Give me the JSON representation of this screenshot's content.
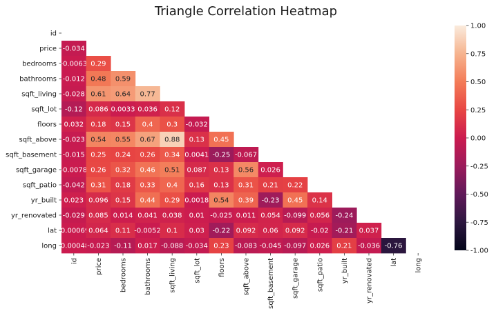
{
  "chart_data": {
    "type": "heatmap",
    "title": "Triangle Correlation Heatmap",
    "xlabel": "",
    "ylabel": "",
    "variables": [
      "id",
      "price",
      "bedrooms",
      "bathrooms",
      "sqft_living",
      "sqft_lot",
      "floors",
      "sqft_above",
      "sqft_basement",
      "sqft_garage",
      "sqft_patio",
      "yr_built",
      "yr_renovated",
      "lat",
      "long"
    ],
    "lower_triangle": [
      [],
      [
        "-0.034"
      ],
      [
        "-0.0063",
        "0.29"
      ],
      [
        "-0.012",
        "0.48",
        "0.59"
      ],
      [
        "-0.028",
        "0.61",
        "0.64",
        "0.77"
      ],
      [
        "-0.12",
        "0.086",
        "0.0033",
        "0.036",
        "0.12"
      ],
      [
        "0.032",
        "0.18",
        "0.15",
        "0.4",
        "0.3",
        "-0.032"
      ],
      [
        "-0.023",
        "0.54",
        "0.55",
        "0.67",
        "0.88",
        "0.13",
        "0.45"
      ],
      [
        "-0.015",
        "0.25",
        "0.24",
        "0.26",
        "0.34",
        "0.0041",
        "-0.25",
        "-0.067"
      ],
      [
        "-0.0078",
        "0.26",
        "0.32",
        "0.46",
        "0.51",
        "0.087",
        "0.13",
        "0.56",
        "0.026"
      ],
      [
        "-0.042",
        "0.31",
        "0.18",
        "0.33",
        "0.4",
        "0.16",
        "0.13",
        "0.31",
        "0.21",
        "0.22"
      ],
      [
        "0.023",
        "0.096",
        "0.15",
        "0.44",
        "0.29",
        "0.0018",
        "0.54",
        "0.39",
        "-0.23",
        "0.45",
        "0.14"
      ],
      [
        "-0.029",
        "0.085",
        "0.014",
        "0.041",
        "0.038",
        "0.01",
        "-0.025",
        "0.011",
        "0.054",
        "-0.099",
        "0.056",
        "-0.24"
      ],
      [
        "-0.00069",
        "0.064",
        "0.11",
        "-0.0052",
        "0.1",
        "0.03",
        "-0.22",
        "0.092",
        "0.06",
        "0.092",
        "-0.02",
        "-0.21",
        "0.037"
      ],
      [
        "-0.00048",
        "-0.023",
        "-0.11",
        "0.017",
        "-0.088",
        "-0.034",
        "0.23",
        "-0.083",
        "-0.045",
        "-0.097",
        "0.026",
        "0.21",
        "-0.036",
        "-0.76"
      ]
    ],
    "vmin": -1,
    "vmax": 1,
    "colorbar_ticks": [
      "1.00",
      "0.75",
      "0.50",
      "0.25",
      "0.00",
      "-0.25",
      "-0.50",
      "-0.75",
      "-1.00"
    ],
    "colormap": "rocket"
  }
}
